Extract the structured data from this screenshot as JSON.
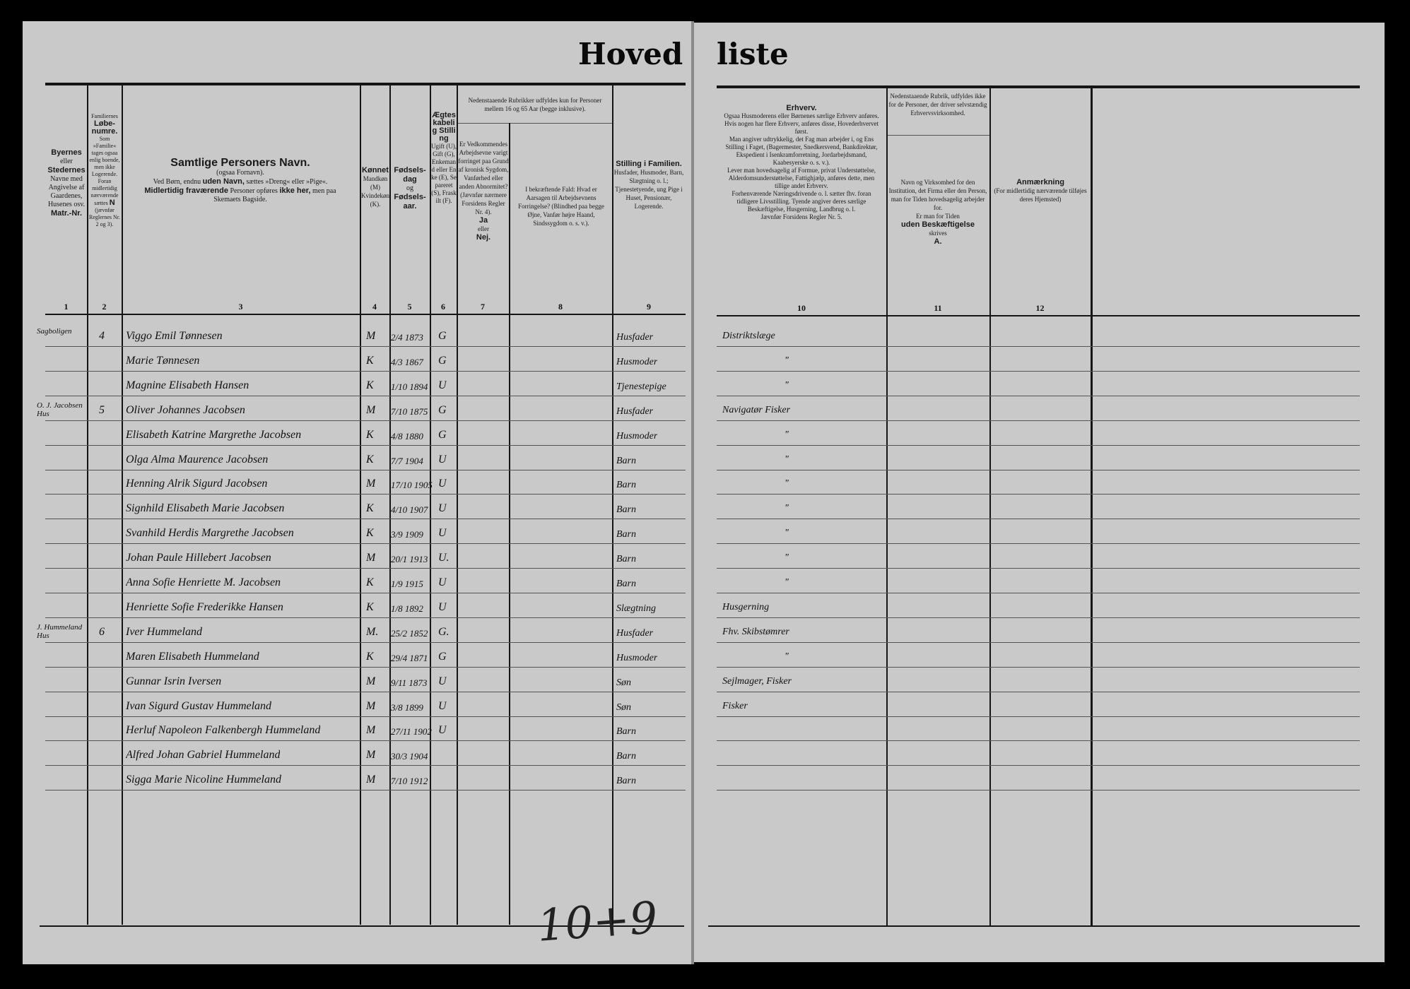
{
  "title": {
    "part1": "Hoved",
    "part2": "liste"
  },
  "columns_left": [
    {
      "number": "1",
      "header": [
        "Byernes",
        "eller",
        "Stedernes",
        "Navne med Angivelse af Gaardenes, Husenes osv.",
        "Matr.-Nr."
      ]
    },
    {
      "number": "2",
      "header": [
        "Familiernes",
        "Løbe-numre.",
        "Som »Familie« tages ogsaa enlig boende, men ikke Logerende. Foran midlertidig nærværende sættes",
        "N",
        "(jævnfør Reglernes Nr. 2 og 3)."
      ]
    },
    {
      "number": "3",
      "header": [
        "Samtlige Personers Navn.",
        "(ogsaa Fornavn).",
        "Ved Børn, endnu",
        "uden Navn,",
        "sættes »Dreng« eller »Pige«.",
        "Midlertidig fraværende",
        "Personer opføres",
        "ikke her,",
        "men paa Skemaets Bagside."
      ]
    },
    {
      "number": "4",
      "header": [
        "Kønnet",
        "Mandkøn (M) Kvindekøn (K)."
      ]
    },
    {
      "number": "5",
      "header": [
        "Fødsels-dag",
        "og",
        "Fødsels-aar."
      ]
    },
    {
      "number": "6",
      "header": [
        "Ægteskabelig Stilling",
        "Ugift (U), Gift (G), Enkemand eller Enke (E), Separeret (S), Fraskilt (F)."
      ]
    },
    {
      "number": "7",
      "header": [
        "Er Vedkommendes Arbejdsevne varigt forringet paa Grund af kronisk Sygdom, Vanførhed eller anden Abnormitet? (Jævnfør nærmere Forsidens Regler Nr. 4).",
        "Ja",
        "eller",
        "Nej."
      ]
    },
    {
      "number": "8",
      "header": [
        "I bekræftende Fald: Hvad er Aarsagen til Arbejdsevnens Forringelse? (Blindhed paa begge Øjne, Vanfør højre Haand, Sindssygdom o. s. v.)."
      ]
    },
    {
      "number": "9",
      "header": [
        "Stilling i Familien.",
        "Husfader, Husmoder, Barn, Slægtning o. l.; Tjenestetyende, ung Pige i Huset, Pensionær, Logerende."
      ]
    }
  ],
  "group_header_7_8": "Nedenstaaende Rubrikker udfyldes kun for Personer mellem 16 og 65 Aar (begge inklusive).",
  "columns_right": [
    {
      "number": "10",
      "header": [
        "Erhverv.",
        "Ogsaa Husmoderens eller Børnenes særlige Erhverv anføres. Hvis nogen har flere Erhverv, anføres disse, Hovederhvervet først.",
        "Man angiver udtrykkelig, det Fag man arbejder i, og Ens Stilling i Faget, (Bagermester, Snedkersvend, Bankdirektør, Ekspedient i Isenkramforretning, Jordarbejdsmand, Kaabesyerske o. s. v.).",
        "Lever man hovedsagelig af Formue, privat Understøttelse, Alderdomsunderstøttelse, Fattighjælp, anføres dette, men tillige andet Erhverv.",
        "Forhenværende Næringsdrivende o. l. sætter fhv. foran tidligere Livsstilling. Tyende angiver deres særlige Beskæftigelse, Husgerning, Landbrug o. l.",
        "Jævnfør Forsidens Regler Nr. 5."
      ]
    },
    {
      "number": "11",
      "top_note": "Nedenstaaende Rubrik, udfyldes ikke for de Personer, der driver selvstændig Erhvervsvirksomhed.",
      "header": [
        "Navn og Virksomhed for den Institution, det Firma eller den Person, man for Tiden hovedsagelig arbejder for.",
        "Er man for Tiden",
        "uden Beskæftigelse",
        "skrives",
        "A."
      ]
    },
    {
      "number": "12",
      "header": [
        "Anmærkning",
        "(For midlertidig nærværende tilføjes deres Hjemsted)"
      ]
    }
  ],
  "rows": [
    {
      "place": "Sagboligen",
      "family_no": "4",
      "name": "Viggo Emil Tønnesen",
      "sex": "M",
      "birth": "2/4 1873",
      "marital": "G",
      "family_position": "Husfader",
      "occupation": "Distriktslæge"
    },
    {
      "place": "",
      "family_no": "",
      "name": "Marie Tønnesen",
      "sex": "K",
      "birth": "4/3 1867",
      "marital": "G",
      "family_position": "Husmoder",
      "occupation": "\""
    },
    {
      "place": "",
      "family_no": "",
      "name": "Magnine Elisabeth Hansen",
      "sex": "K",
      "birth": "1/10 1894",
      "marital": "U",
      "family_position": "Tjenestepige",
      "occupation": "\""
    },
    {
      "place": "O. J. Jacobsen Hus",
      "family_no": "5",
      "name": "Oliver Johannes Jacobsen",
      "sex": "M",
      "birth": "7/10 1875",
      "marital": "G",
      "family_position": "Husfader",
      "occupation": "Navigatør Fisker"
    },
    {
      "place": "",
      "family_no": "",
      "name": "Elisabeth Katrine Margrethe Jacobsen",
      "sex": "K",
      "birth": "4/8 1880",
      "marital": "G",
      "family_position": "Husmoder",
      "occupation": "\""
    },
    {
      "place": "",
      "family_no": "",
      "name": "Olga Alma Maurence Jacobsen",
      "sex": "K",
      "birth": "7/7 1904",
      "marital": "U",
      "family_position": "Barn",
      "occupation": "\""
    },
    {
      "place": "",
      "family_no": "",
      "name": "Henning Alrik Sigurd Jacobsen",
      "sex": "M",
      "birth": "17/10 1905",
      "marital": "U",
      "family_position": "Barn",
      "occupation": "\""
    },
    {
      "place": "",
      "family_no": "",
      "name": "Signhild Elisabeth Marie Jacobsen",
      "sex": "K",
      "birth": "4/10 1907",
      "marital": "U",
      "family_position": "Barn",
      "occupation": "\""
    },
    {
      "place": "",
      "family_no": "",
      "name": "Svanhild Herdis Margrethe Jacobsen",
      "sex": "K",
      "birth": "3/9 1909",
      "marital": "U",
      "family_position": "Barn",
      "occupation": "\""
    },
    {
      "place": "",
      "family_no": "",
      "name": "Johan Paule Hillebert Jacobsen",
      "sex": "M",
      "birth": "20/1 1913",
      "marital": "U.",
      "family_position": "Barn",
      "occupation": "\""
    },
    {
      "place": "",
      "family_no": "",
      "name": "Anna Sofie Henriette M. Jacobsen",
      "sex": "K",
      "birth": "1/9 1915",
      "marital": "U",
      "family_position": "Barn",
      "occupation": "\""
    },
    {
      "place": "",
      "family_no": "",
      "name": "Henriette Sofie Frederikke Hansen",
      "sex": "K",
      "birth": "1/8 1892",
      "marital": "U",
      "family_position": "Slægtning",
      "occupation": "Husgerning"
    },
    {
      "place": "J. Hummeland Hus",
      "family_no": "6",
      "name": "Iver Hummeland",
      "sex": "M.",
      "birth": "25/2 1852",
      "marital": "G.",
      "family_position": "Husfader",
      "occupation": "Fhv. Skibstømrer"
    },
    {
      "place": "",
      "family_no": "",
      "name": "Maren Elisabeth Hummeland",
      "sex": "K",
      "birth": "29/4 1871",
      "marital": "G",
      "family_position": "Husmoder",
      "occupation": "\""
    },
    {
      "place": "",
      "family_no": "",
      "name": "Gunnar Isrin Iversen",
      "sex": "M",
      "birth": "9/11 1873",
      "marital": "U",
      "family_position": "Søn",
      "occupation": "Sejlmager, Fisker"
    },
    {
      "place": "",
      "family_no": "",
      "name": "Ivan Sigurd Gustav Hummeland",
      "sex": "M",
      "birth": "3/8 1899",
      "marital": "U",
      "family_position": "Søn",
      "occupation": "Fisker"
    },
    {
      "place": "",
      "family_no": "",
      "name": "Herluf Napoleon Falkenbergh Hummeland",
      "sex": "M",
      "birth": "27/11 1902",
      "marital": "U",
      "family_position": "Barn",
      "occupation": ""
    },
    {
      "place": "",
      "family_no": "",
      "name": "Alfred Johan Gabriel Hummeland",
      "sex": "M",
      "birth": "30/3 1904",
      "marital": "",
      "family_position": "Barn",
      "occupation": ""
    },
    {
      "place": "",
      "family_no": "",
      "name": "Sigga Marie Nicoline Hummeland",
      "sex": "M",
      "birth": "7/10 1912",
      "marital": "",
      "family_position": "Barn",
      "occupation": ""
    }
  ],
  "bottom_annotation": "10+9"
}
